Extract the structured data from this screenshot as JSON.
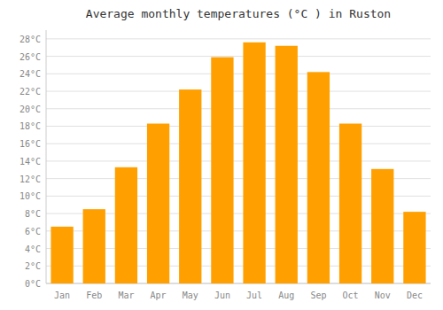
{
  "chart_data": {
    "type": "bar",
    "title": "Average monthly temperatures (°C ) in Ruston",
    "categories": [
      "Jan",
      "Feb",
      "Mar",
      "Apr",
      "May",
      "Jun",
      "Jul",
      "Aug",
      "Sep",
      "Oct",
      "Nov",
      "Dec"
    ],
    "values": [
      6.5,
      8.5,
      13.3,
      18.3,
      22.2,
      25.9,
      27.6,
      27.2,
      24.2,
      18.3,
      13.1,
      8.2
    ],
    "color": "#FFA000",
    "ylim": [
      0,
      29
    ],
    "yticks": [
      {
        "value": 0,
        "label": "0°C"
      },
      {
        "value": 2,
        "label": "2°C"
      },
      {
        "value": 4,
        "label": "4°C"
      },
      {
        "value": 6,
        "label": "6°C"
      },
      {
        "value": 8,
        "label": "8°C"
      },
      {
        "value": 10,
        "label": "10°C"
      },
      {
        "value": 12,
        "label": "12°C"
      },
      {
        "value": 14,
        "label": "14°C"
      },
      {
        "value": 16,
        "label": "16°C"
      },
      {
        "value": 18,
        "label": "18°C"
      },
      {
        "value": 20,
        "label": "20°C"
      },
      {
        "value": 22,
        "label": "22°C"
      },
      {
        "value": 24,
        "label": "24°C"
      },
      {
        "value": 26,
        "label": "26°C"
      },
      {
        "value": 28,
        "label": "28°C"
      }
    ],
    "grid": true
  }
}
